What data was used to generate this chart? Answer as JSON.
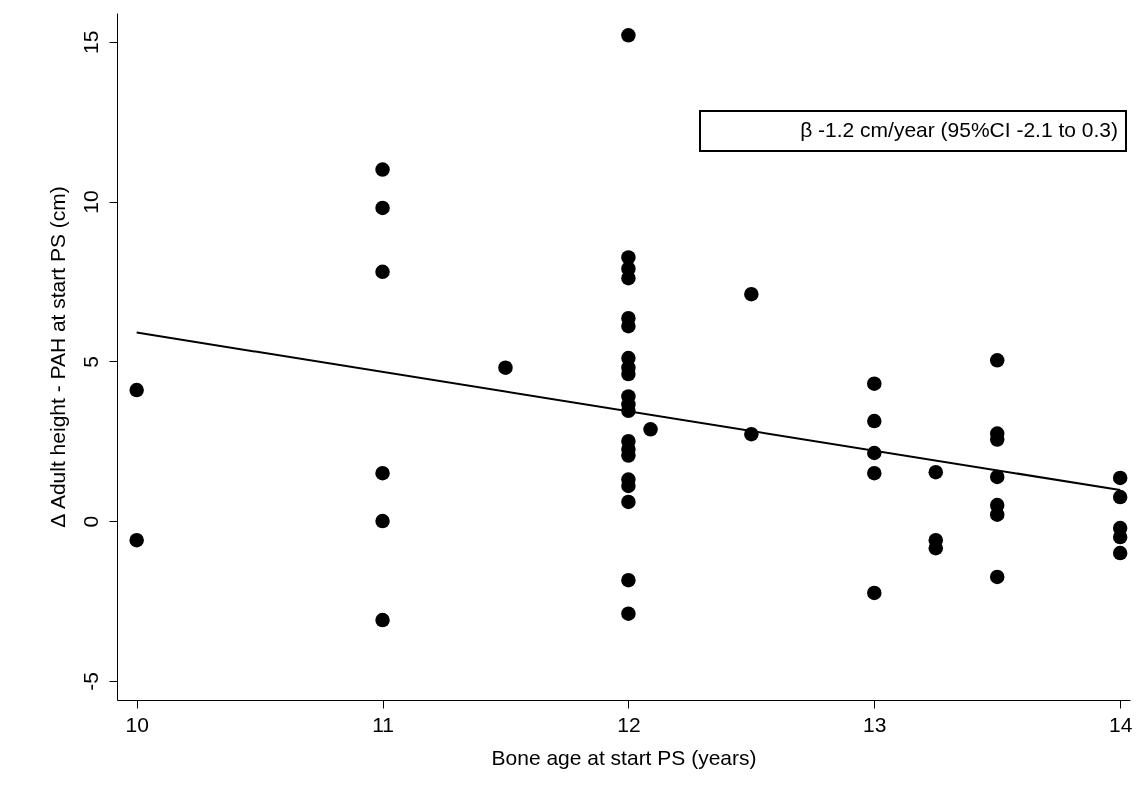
{
  "chart_data": {
    "type": "scatter",
    "xlabel": "Bone age at start PS (years)",
    "ylabel": "Δ Adult height - PAH at start PS (cm)",
    "annotations": [
      "β -1.2 cm/year (95%CI -2.1 to 0.3)"
    ],
    "xlim": [
      9.92,
      14.04
    ],
    "ylim": [
      -5.6,
      15.9
    ],
    "xticks": [
      10,
      11,
      12,
      13,
      14
    ],
    "yticks": [
      -5,
      0,
      5,
      10,
      15
    ],
    "grid": false,
    "series": [
      {
        "marker": "circle",
        "color": "#000000",
        "x": [
          10,
          10,
          11,
          11,
          11,
          11,
          11,
          11,
          11.5,
          12,
          12,
          12,
          12,
          12,
          12,
          12,
          12,
          12,
          12,
          12,
          12,
          12,
          12,
          12,
          12,
          12,
          12,
          12,
          12,
          12.09,
          12.5,
          12.5,
          13,
          13,
          13,
          13,
          13,
          13.25,
          13.25,
          13.25,
          13.5,
          13.5,
          13.5,
          13.5,
          13.5,
          13.5,
          13.5,
          14,
          14,
          14,
          14,
          14
        ],
        "values": [
          4.1,
          -0.6,
          11.0,
          9.8,
          7.8,
          1.5,
          0.0,
          -3.1,
          4.8,
          15.2,
          8.25,
          7.9,
          7.6,
          6.35,
          6.1,
          5.1,
          4.8,
          4.6,
          3.9,
          3.65,
          3.45,
          2.5,
          2.25,
          2.05,
          1.3,
          1.1,
          0.6,
          -1.85,
          -2.9,
          2.87,
          7.1,
          2.72,
          4.3,
          3.13,
          2.13,
          1.5,
          -2.25,
          1.53,
          -0.6,
          -0.85,
          5.03,
          2.74,
          2.55,
          1.38,
          0.5,
          0.2,
          -1.75,
          1.35,
          0.75,
          -0.22,
          -0.5,
          -1.0
        ]
      },
      {
        "type": "line",
        "color": "#000000",
        "x": [
          10,
          14
        ],
        "values": [
          5.9,
          0.97
        ]
      }
    ]
  }
}
